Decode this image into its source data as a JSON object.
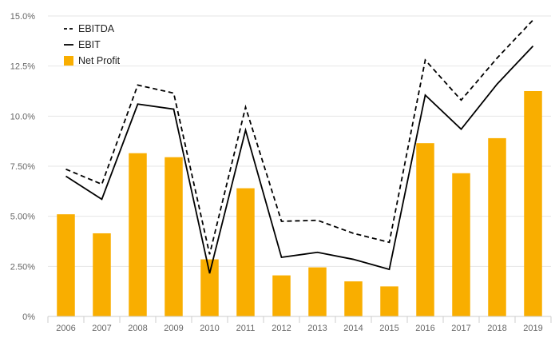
{
  "chart_data": {
    "type": "bar",
    "categories": [
      "2006",
      "2007",
      "2008",
      "2009",
      "2010",
      "2011",
      "2012",
      "2013",
      "2014",
      "2015",
      "2016",
      "2017",
      "2018",
      "2019"
    ],
    "series": [
      {
        "name": "EBITDA",
        "type": "line",
        "style": "dashed",
        "color": "#000000",
        "values": [
          7.35,
          6.6,
          11.55,
          11.15,
          3.1,
          10.45,
          4.75,
          4.8,
          4.15,
          3.7,
          12.8,
          10.8,
          12.9,
          14.8
        ]
      },
      {
        "name": "EBIT",
        "type": "line",
        "style": "solid",
        "color": "#000000",
        "values": [
          7.0,
          5.85,
          10.6,
          10.35,
          2.15,
          9.3,
          2.95,
          3.2,
          2.85,
          2.35,
          11.05,
          9.35,
          11.6,
          13.5
        ]
      },
      {
        "name": "Net Profit",
        "type": "bar",
        "color": "#f9ae00",
        "values": [
          5.1,
          4.15,
          8.15,
          7.95,
          2.85,
          6.4,
          2.05,
          2.45,
          1.75,
          1.5,
          8.65,
          7.15,
          8.9,
          11.25
        ]
      }
    ],
    "y_ticks": [
      "0%",
      "2.50%",
      "5.00%",
      "7.50%",
      "10.0%",
      "12.5%",
      "15.0%"
    ],
    "ylim": [
      0,
      15
    ],
    "grid": true,
    "legend_position": "top-left"
  }
}
